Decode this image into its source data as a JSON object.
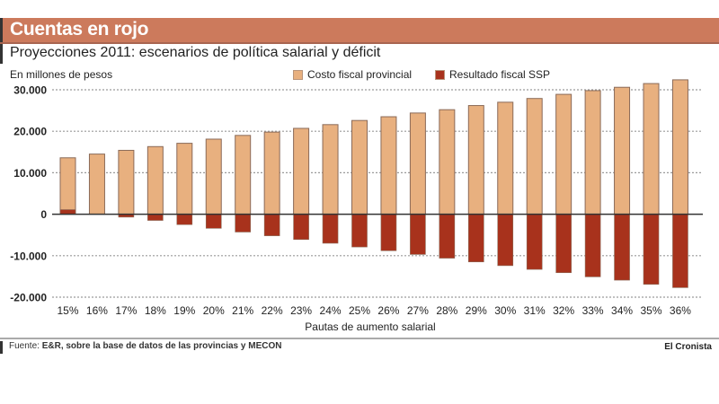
{
  "header": {
    "title": "Cuentas en rojo",
    "subtitle": "Proyecciones 2011: escenarios de política salarial y déficit",
    "units": "En millones de pesos"
  },
  "colors": {
    "header_bg": "#cc7a5c",
    "costo": "#e8b07f",
    "resultado": "#a8321c",
    "bar_outline": "#8a6a58",
    "grid": "#9a9a9a",
    "zero_line": "#333333"
  },
  "footer": {
    "source_label": "Fuente:",
    "source_text": "E&R, sobre la base de datos de las provincias y MECON",
    "brand": "El Cronista"
  },
  "chart_data": {
    "type": "bar",
    "title": "Proyecciones 2011: escenarios de política salarial y déficit",
    "xlabel": "Pautas de aumento salarial",
    "ylabel": "En millones de pesos",
    "ylim": [
      -20000,
      30000
    ],
    "yticks": [
      30000,
      20000,
      10000,
      0,
      -10000,
      -20000
    ],
    "ytick_labels": [
      "30.000",
      "20.000",
      "10.000",
      "0",
      "-10.000",
      "-20.000"
    ],
    "grid": true,
    "legend_position": "top-right",
    "categories": [
      "15%",
      "16%",
      "17%",
      "18%",
      "19%",
      "20%",
      "21%",
      "22%",
      "23%",
      "24%",
      "25%",
      "26%",
      "27%",
      "28%",
      "29%",
      "30%",
      "31%",
      "32%",
      "33%",
      "34%",
      "35%",
      "36%"
    ],
    "series": [
      {
        "name": "Costo fiscal provincial",
        "values": [
          13600,
          14500,
          15400,
          16300,
          17100,
          18100,
          19000,
          19800,
          20700,
          21600,
          22600,
          23500,
          24400,
          25200,
          26200,
          27000,
          27900,
          28900,
          29800,
          30600,
          31500,
          32400
        ]
      },
      {
        "name": "Resultado fiscal SSP",
        "values": [
          1100,
          0,
          -700,
          -1500,
          -2500,
          -3400,
          -4300,
          -5200,
          -6100,
          -7000,
          -7900,
          -8800,
          -9700,
          -10600,
          -11500,
          -12400,
          -13300,
          -14100,
          -15100,
          -15900,
          -16900,
          -17700
        ]
      }
    ]
  }
}
